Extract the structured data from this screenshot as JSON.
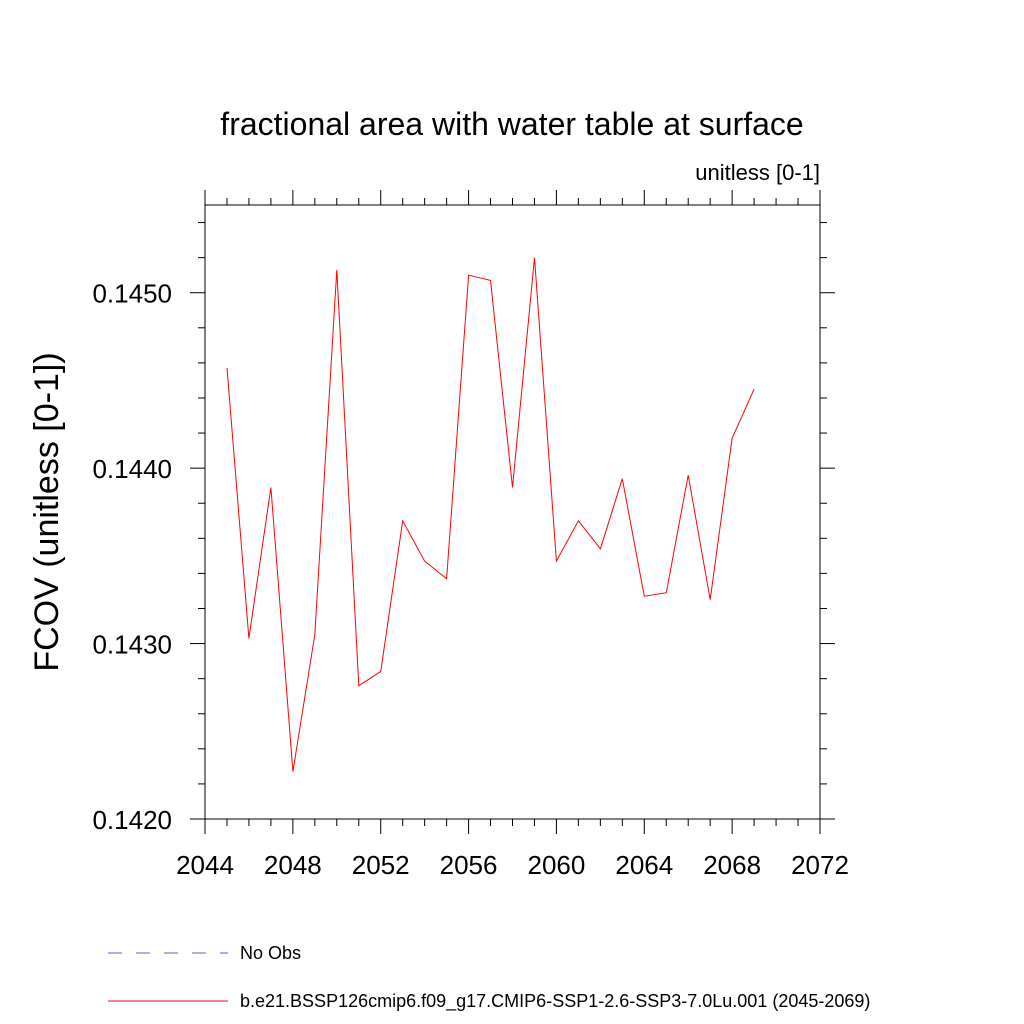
{
  "chart_data": {
    "type": "line",
    "title": "fractional area with water table at surface",
    "units_label": "unitless [0-1]",
    "ylabel": "FCOV  (unitless [0-1])",
    "xlabel": "",
    "xlim": [
      2044,
      2072
    ],
    "ylim": [
      0.142,
      0.1455
    ],
    "x_ticks": [
      2044,
      2048,
      2052,
      2056,
      2060,
      2064,
      2068,
      2072
    ],
    "x_tick_labels": [
      "2044",
      "2048",
      "2052",
      "2056",
      "2060",
      "2064",
      "2068",
      "2072"
    ],
    "y_ticks": [
      0.142,
      0.143,
      0.144,
      0.145
    ],
    "y_tick_labels": [
      "0.1420",
      "0.1430",
      "0.1440",
      "0.1450"
    ],
    "grid": false,
    "legend_position": "bottom",
    "series": [
      {
        "name": "b.e21.BSSP126cmip6.f09_g17.CMIP6-SSP1-2.6-SSP3-7.0Lu.001 (2045-2069)",
        "color": "#ff0000",
        "x": [
          2045,
          2046,
          2047,
          2048,
          2049,
          2050,
          2051,
          2052,
          2053,
          2054,
          2055,
          2056,
          2057,
          2058,
          2059,
          2060,
          2061,
          2062,
          2063,
          2064,
          2065,
          2066,
          2067,
          2068,
          2069
        ],
        "y": [
          0.14457,
          0.14303,
          0.14389,
          0.14227,
          0.14305,
          0.14513,
          0.14276,
          0.14284,
          0.1437,
          0.14347,
          0.14337,
          0.1451,
          0.14507,
          0.14389,
          0.1452,
          0.14347,
          0.1437,
          0.14354,
          0.14394,
          0.14327,
          0.14329,
          0.14396,
          0.14325,
          0.14417,
          0.14445
        ]
      }
    ],
    "legend": [
      {
        "label": "No Obs",
        "color": "#6a5acd",
        "style": "dashed"
      },
      {
        "label": "b.e21.BSSP126cmip6.f09_g17.CMIP6-SSP1-2.6-SSP3-7.0Lu.001 (2045-2069)",
        "color": "#ff0000",
        "style": "solid"
      }
    ]
  }
}
